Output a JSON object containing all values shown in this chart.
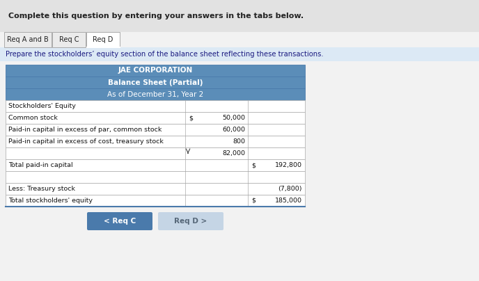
{
  "title_bar_text": "Complete this question by entering your answers in the tabs below.",
  "tabs": [
    "Req A and B",
    "Req C",
    "Req D"
  ],
  "active_tab": "Req D",
  "instruction": "Prepare the stockholders’ equity section of the balance sheet reflecting these transactions.",
  "corp_name": "JAE CORPORATION",
  "sheet_title": "Balance Sheet (Partial)",
  "sheet_date": "As of December 31, Year 2",
  "rows": [
    {
      "label": "Stockholders' Equity",
      "col1": "",
      "col2": ""
    },
    {
      "label": "Common stock",
      "col1": "$ 50,000",
      "col2": ""
    },
    {
      "label": "Paid-in capital in excess of par, common stock",
      "col1": "60,000",
      "col2": ""
    },
    {
      "label": "Paid-in capital in excess of cost, treasury stock",
      "col1": "800",
      "col2": ""
    },
    {
      "label": "",
      "col1": "82,000",
      "col2": "",
      "arrow": true
    },
    {
      "label": "Total paid-in capital",
      "col1": "",
      "col2": "$ 192,800"
    },
    {
      "label": "",
      "col1": "",
      "col2": ""
    },
    {
      "label": "Less: Treasury stock",
      "col1": "",
      "col2": "(7,800)"
    },
    {
      "label": "Total stockholders' equity",
      "col1": "",
      "col2": "$ 185,000"
    }
  ],
  "header_bg": "#5b8db8",
  "tab_active_bg": "#ffffff",
  "tab_inactive_bg": "#ebebeb",
  "tab_border": "#aaaaaa",
  "top_bar_bg": "#e2e2e2",
  "instruction_bg": "#dce9f5",
  "table_border_color": "#4a7aab",
  "row_border_color": "#aaaaaa",
  "btn_req_c_bg": "#4a7aab",
  "btn_req_c_text": "< Req C",
  "btn_req_d_bg": "#c5d5e5",
  "btn_req_d_text": "Req D >",
  "fig_w": 6.88,
  "fig_h": 4.04,
  "dpi": 100
}
